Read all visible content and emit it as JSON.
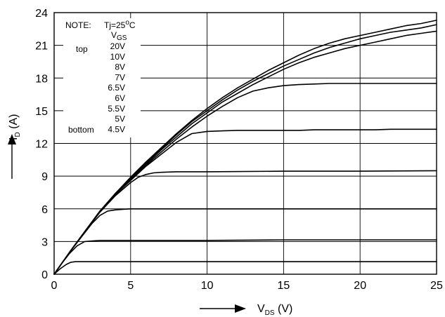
{
  "chart_data": {
    "type": "line",
    "title": "",
    "xlabel": {
      "main": "V",
      "sub": "DS",
      "unit": " (V)"
    },
    "ylabel": {
      "main": "I",
      "sub": "D",
      "unit": " (A)"
    },
    "xlim": [
      0,
      25
    ],
    "ylim": [
      0,
      24
    ],
    "x_ticks": [
      "0",
      "5",
      "10",
      "15",
      "20",
      "25"
    ],
    "y_ticks": [
      "0",
      "3",
      "6",
      "9",
      "12",
      "15",
      "18",
      "21",
      "24"
    ],
    "grid": true,
    "note": {
      "label": "NOTE:",
      "condition": "Tj=25",
      "degree": "o",
      "condition_unit": "C",
      "vgs_main": "V",
      "vgs_sub": "GS",
      "top": "top",
      "bottom": "bottom",
      "levels": [
        "20V",
        "10V",
        "8V",
        "7V",
        "6.5V",
        "6V",
        "5.5V",
        "5V",
        "4.5V"
      ]
    },
    "series": [
      {
        "x": [
          0,
          1,
          2,
          3,
          4,
          5,
          6,
          7,
          8,
          9,
          10,
          11,
          12,
          13,
          14,
          15,
          16,
          17,
          18,
          19,
          20,
          21,
          22,
          23,
          24,
          25
        ],
        "values": [
          0,
          2.0,
          3.9,
          5.8,
          7.4,
          8.9,
          10.3,
          11.6,
          12.9,
          14.1,
          15.2,
          16.2,
          17.1,
          17.9,
          18.7,
          19.4,
          20.1,
          20.7,
          21.2,
          21.6,
          21.9,
          22.2,
          22.5,
          22.8,
          23.0,
          23.3
        ]
      },
      {
        "x": [
          0,
          1,
          2,
          3,
          4,
          5,
          6,
          7,
          8,
          9,
          10,
          11,
          12,
          13,
          14,
          15,
          16,
          17,
          18,
          19,
          20,
          21,
          22,
          23,
          24,
          25
        ],
        "values": [
          0,
          2.0,
          3.9,
          5.8,
          7.4,
          8.85,
          10.2,
          11.5,
          12.8,
          14.0,
          15.0,
          16.0,
          16.9,
          17.7,
          18.4,
          19.1,
          19.7,
          20.3,
          20.8,
          21.2,
          21.6,
          21.9,
          22.2,
          22.4,
          22.6,
          22.9
        ]
      },
      {
        "x": [
          0,
          1,
          2,
          3,
          4,
          5,
          6,
          7,
          8,
          9,
          10,
          11,
          12,
          13,
          14,
          15,
          16,
          17,
          18,
          19,
          20,
          21,
          22,
          23,
          24,
          25
        ],
        "values": [
          0,
          2.0,
          3.9,
          5.8,
          7.4,
          8.8,
          10.1,
          11.4,
          12.6,
          13.8,
          14.8,
          15.8,
          16.6,
          17.4,
          18.1,
          18.8,
          19.4,
          19.9,
          20.3,
          20.7,
          21.0,
          21.3,
          21.6,
          21.9,
          22.1,
          22.3
        ]
      },
      {
        "x": [
          0,
          1,
          2,
          3,
          4,
          5,
          6,
          7,
          8,
          9,
          10,
          11,
          12,
          13,
          14,
          15,
          16,
          17,
          18,
          19,
          20,
          21,
          22,
          23,
          24,
          25
        ],
        "values": [
          0,
          2.0,
          3.9,
          5.8,
          7.3,
          8.7,
          10.0,
          11.2,
          12.4,
          13.5,
          14.5,
          15.4,
          16.2,
          16.8,
          17.1,
          17.3,
          17.4,
          17.45,
          17.5,
          17.5,
          17.5,
          17.5,
          17.5,
          17.5,
          17.5,
          17.5
        ]
      },
      {
        "x": [
          0,
          1,
          2,
          3,
          4,
          5,
          6,
          7,
          8,
          9,
          10,
          11,
          12,
          13,
          14,
          15,
          16,
          17,
          18,
          19,
          20,
          21,
          22,
          23,
          24,
          25
        ],
        "values": [
          0,
          2.0,
          3.9,
          5.8,
          7.3,
          8.6,
          9.9,
          11.0,
          12.1,
          12.9,
          13.1,
          13.15,
          13.2,
          13.2,
          13.2,
          13.2,
          13.2,
          13.25,
          13.25,
          13.25,
          13.25,
          13.25,
          13.3,
          13.3,
          13.3,
          13.3
        ]
      },
      {
        "x": [
          0,
          1,
          2,
          3,
          4,
          5,
          5.5,
          6,
          6.5,
          7,
          8,
          10,
          15,
          20,
          25
        ],
        "values": [
          0,
          2.0,
          3.9,
          5.7,
          7.2,
          8.4,
          8.9,
          9.15,
          9.3,
          9.35,
          9.4,
          9.4,
          9.45,
          9.45,
          9.5
        ]
      },
      {
        "x": [
          0,
          1,
          2,
          2.5,
          3,
          3.5,
          4,
          4.5,
          5,
          7,
          10,
          15,
          20,
          25
        ],
        "values": [
          0,
          2.0,
          3.8,
          4.7,
          5.4,
          5.8,
          5.9,
          5.95,
          6.0,
          6.0,
          6.0,
          6.0,
          6.0,
          6.0
        ]
      },
      {
        "x": [
          0,
          0.5,
          1,
          1.5,
          2,
          2.5,
          3,
          5,
          10,
          15,
          20,
          25
        ],
        "values": [
          0,
          1.0,
          1.9,
          2.6,
          3.0,
          3.05,
          3.1,
          3.1,
          3.1,
          3.15,
          3.15,
          3.15
        ]
      },
      {
        "x": [
          0,
          0.4,
          0.8,
          1.1,
          1.4,
          2,
          5,
          10,
          15,
          20,
          25
        ],
        "values": [
          0,
          0.5,
          0.9,
          1.1,
          1.15,
          1.15,
          1.15,
          1.15,
          1.15,
          1.15,
          1.15
        ]
      }
    ]
  }
}
